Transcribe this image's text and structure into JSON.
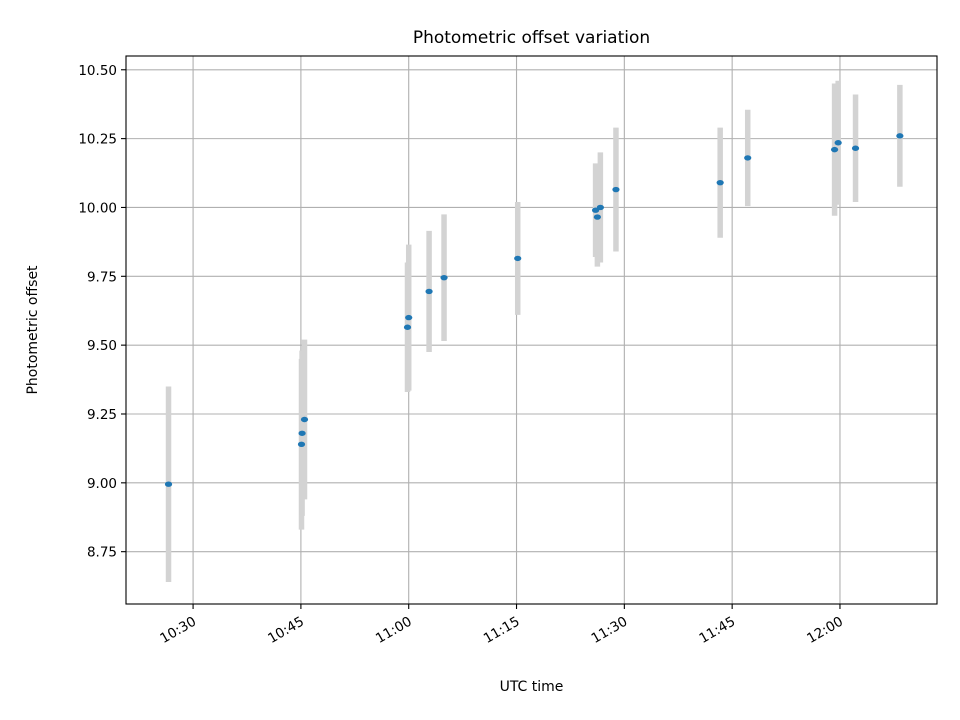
{
  "chart_data": {
    "type": "scatter",
    "title": "Photometric offset variation",
    "xlabel": "UTC time",
    "ylabel": "Photometric offset",
    "x_tick_labels": [
      "10:30",
      "10:45",
      "11:00",
      "11:15",
      "11:30",
      "11:45",
      "12:00"
    ],
    "x_ticks": [
      "10:30",
      "10:45",
      "11:00",
      "11:15",
      "11:30",
      "11:45",
      "12:00"
    ],
    "xlim": [
      "10:20:40",
      "12:13:30"
    ],
    "y_tick_labels": [
      "8.75",
      "9.00",
      "9.25",
      "9.50",
      "9.75",
      "10.00",
      "10.25",
      "10.50"
    ],
    "y_ticks": [
      8.75,
      9.0,
      9.25,
      9.5,
      9.75,
      10.0,
      10.25,
      10.5
    ],
    "ylim": [
      8.56,
      10.55
    ],
    "grid": true,
    "point_color": "#1f77b4",
    "errorbar_color": "#d3d3d3",
    "points": [
      {
        "x": "10:26:35",
        "y": 8.995,
        "yerr": 0.355
      },
      {
        "x": "10:45:05",
        "y": 9.14,
        "yerr": 0.31
      },
      {
        "x": "10:45:10",
        "y": 9.18,
        "yerr": 0.3
      },
      {
        "x": "10:45:30",
        "y": 9.23,
        "yerr": 0.29
      },
      {
        "x": "10:59:50",
        "y": 9.565,
        "yerr": 0.235
      },
      {
        "x": "11:00:00",
        "y": 9.6,
        "yerr": 0.265
      },
      {
        "x": "11:02:50",
        "y": 9.695,
        "yerr": 0.22
      },
      {
        "x": "11:04:55",
        "y": 9.745,
        "yerr": 0.23
      },
      {
        "x": "11:15:10",
        "y": 9.815,
        "yerr": 0.205
      },
      {
        "x": "11:26:00",
        "y": 9.99,
        "yerr": 0.17
      },
      {
        "x": "11:26:15",
        "y": 9.965,
        "yerr": 0.18
      },
      {
        "x": "11:26:40",
        "y": 10.0,
        "yerr": 0.2
      },
      {
        "x": "11:28:50",
        "y": 10.065,
        "yerr": 0.225
      },
      {
        "x": "11:43:20",
        "y": 10.09,
        "yerr": 0.2
      },
      {
        "x": "11:47:10",
        "y": 10.18,
        "yerr": 0.175
      },
      {
        "x": "11:59:15",
        "y": 10.21,
        "yerr": 0.24
      },
      {
        "x": "11:59:45",
        "y": 10.235,
        "yerr": 0.225
      },
      {
        "x": "12:02:10",
        "y": 10.215,
        "yerr": 0.195
      },
      {
        "x": "12:08:20",
        "y": 10.26,
        "yerr": 0.185
      }
    ]
  }
}
